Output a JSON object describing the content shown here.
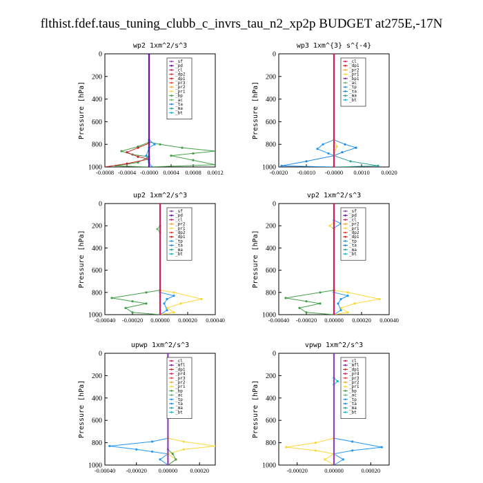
{
  "title": "flthist.fdef.taus_tuning_clubb_c_invrs_tau_n2_xp2p  BUDGET at275E,-17N",
  "colors": {
    "sf": "#8e44ad",
    "pd": "#6a0dad",
    "cl": "#d81b60",
    "dp2": "#e53935",
    "dp1": "#c62828",
    "pr3": "#f44336",
    "pr2": "#ffa726",
    "pr1": "#fdd835",
    "bp": "#43a047",
    "ac": "#66bb6a",
    "tp": "#2196f3",
    "ta": "#1e88e5",
    "ma": "#26a69a",
    "bt": "#00bcd4",
    "mfl": "#7b1fa2",
    "pr4": "#e91e63",
    "bp1": "#8e24aa"
  },
  "chart_data": [
    {
      "type": "line",
      "title": "wp2  1xm^2/s^3",
      "ylabel": "Pressure [hPa]",
      "ylim": [
        1000,
        0
      ],
      "yticks": [
        "0",
        "200",
        "400",
        "600",
        "800",
        "1000"
      ],
      "xlim": [
        -0.0008,
        0.0012
      ],
      "xticks": [
        "-0.0008",
        "-0.0004",
        "-0.0000",
        "0.0004",
        "0.0008",
        "0.0012"
      ],
      "legend": [
        "_sf",
        "_pd",
        "_cl",
        "_dp2",
        "_dp1",
        "_pr3",
        "_pr2",
        "_pr1",
        "_bp",
        "_ac",
        "_ta",
        "_ma",
        "_bt"
      ],
      "series": [
        {
          "name": "_pr1",
          "color_key": "bp",
          "points": [
            [
              0,
              780
            ],
            [
              0.0002,
              800
            ],
            [
              0.0006,
              830
            ],
            [
              0.0012,
              860
            ],
            [
              0.0008,
              880
            ],
            [
              0.0004,
              900
            ],
            [
              0.0008,
              940
            ],
            [
              0.0012,
              980
            ],
            [
              0,
              1000
            ]
          ]
        },
        {
          "name": "_bp",
          "color_key": "bp",
          "points": [
            [
              0,
              780
            ],
            [
              -0.0002,
              820
            ],
            [
              -0.0005,
              860
            ],
            [
              -0.0003,
              890
            ],
            [
              0,
              910
            ],
            [
              -0.0002,
              960
            ],
            [
              -0.0006,
              990
            ],
            [
              0,
              1000
            ]
          ]
        },
        {
          "name": "_dp1",
          "color_key": "dp1",
          "points": [
            [
              0,
              790
            ],
            [
              -0.0002,
              830
            ],
            [
              -0.0004,
              870
            ],
            [
              -0.0002,
              910
            ],
            [
              0,
              930
            ],
            [
              -0.0004,
              970
            ],
            [
              -0.0008,
              1000
            ]
          ]
        },
        {
          "name": "_ac",
          "color_key": "tp",
          "points": [
            [
              0,
              760
            ],
            [
              0.0001,
              800
            ],
            [
              0,
              830
            ],
            [
              -5e-05,
              900
            ],
            [
              0,
              960
            ],
            [
              5e-05,
              1000
            ]
          ]
        },
        {
          "name": "_sf",
          "color_key": "pd",
          "points": [
            [
              0,
              0
            ],
            [
              0,
              1000
            ]
          ]
        }
      ]
    },
    {
      "type": "line",
      "title": "wp3  1xm^{3} s^{-4}",
      "ylabel": "Pressure [hPa]",
      "ylim": [
        1000,
        0
      ],
      "yticks": [
        "0",
        "200",
        "400",
        "600",
        "800",
        "1000"
      ],
      "xlim": [
        -0.002,
        0.002
      ],
      "xticks": [
        "-0.0020",
        "-0.0010",
        "-0.0000",
        "0.0010",
        "0.0020"
      ],
      "legend": [
        "_cl",
        "_dp1",
        "_pr2",
        "_pr1",
        "_bp1",
        "_ac",
        "_tp",
        "_ta",
        "_ma",
        "_bt"
      ],
      "series": [
        {
          "name": "_ta",
          "color_key": "ta",
          "points": [
            [
              0,
              760
            ],
            [
              0.0004,
              800
            ],
            [
              0.0008,
              830
            ],
            [
              0.0003,
              870
            ],
            [
              0,
              900
            ],
            [
              -0.001,
              950
            ],
            [
              -0.0019,
              990
            ],
            [
              0,
              1000
            ]
          ]
        },
        {
          "name": "_tp",
          "color_key": "tp",
          "points": [
            [
              0,
              760
            ],
            [
              -0.0004,
              800
            ],
            [
              -0.0006,
              840
            ],
            [
              -0.0002,
              880
            ],
            [
              0,
              900
            ]
          ]
        },
        {
          "name": "_ma",
          "color_key": "ma",
          "points": [
            [
              0,
              900
            ],
            [
              0.0006,
              950
            ],
            [
              0.0016,
              990
            ],
            [
              0,
              1000
            ]
          ]
        },
        {
          "name": "_pr1",
          "color_key": "pr1",
          "points": [
            [
              0,
              760
            ],
            [
              0.0001,
              820
            ],
            [
              0,
              900
            ]
          ]
        },
        {
          "name": "_cl",
          "color_key": "cl",
          "points": [
            [
              0,
              0
            ],
            [
              0,
              1000
            ]
          ]
        }
      ]
    },
    {
      "type": "line",
      "title": "up2  1xm^2/s^3",
      "ylabel": "Pressure [hPa]",
      "ylim": [
        1000,
        0
      ],
      "yticks": [
        "0",
        "200",
        "400",
        "600",
        "800",
        "1000"
      ],
      "xlim": [
        -0.0004,
        0.0004
      ],
      "xticks": [
        "-0.00040",
        "-0.00020",
        "0.00000",
        "0.00020",
        "0.00040"
      ],
      "legend": [
        "_sf",
        "_pd",
        "_cl",
        "_pr2",
        "_pr1",
        "_dp2",
        "_dp1",
        "_tp",
        "_ta",
        "_ma",
        "_bt"
      ],
      "series": [
        {
          "name": "_pr1",
          "color_key": "pr1",
          "points": [
            [
              0,
              780
            ],
            [
              0.0001,
              800
            ],
            [
              0.0003,
              860
            ],
            [
              0.00015,
              900
            ],
            [
              5e-05,
              940
            ],
            [
              0.0001,
              980
            ],
            [
              0,
              1000
            ]
          ]
        },
        {
          "name": "_dp2",
          "color_key": "bp",
          "points": [
            [
              0,
              780
            ],
            [
              -0.0001,
              800
            ],
            [
              -0.00035,
              850
            ],
            [
              -0.0002,
              880
            ],
            [
              -0.0001,
              900
            ],
            [
              -0.00025,
              940
            ],
            [
              -0.0002,
              980
            ],
            [
              0,
              1000
            ]
          ]
        },
        {
          "name": "_tp",
          "color_key": "tp",
          "points": [
            [
              0,
              800
            ],
            [
              0.0001,
              830
            ],
            [
              5e-05,
              860
            ],
            [
              3e-05,
              900
            ],
            [
              5e-05,
              960
            ],
            [
              0,
              1000
            ]
          ]
        },
        {
          "name": "_dp1",
          "color_key": "ac",
          "points": [
            [
              0,
              200
            ],
            [
              -2e-05,
              230
            ],
            [
              0,
              260
            ]
          ]
        },
        {
          "name": "_sf",
          "color_key": "cl",
          "points": [
            [
              0,
              0
            ],
            [
              0,
              1000
            ]
          ]
        }
      ]
    },
    {
      "type": "line",
      "title": "vp2  1xm^2/s^3",
      "ylabel": "Pressure [hPa]",
      "ylim": [
        1000,
        0
      ],
      "yticks": [
        "0",
        "200",
        "400",
        "600",
        "800",
        "1000"
      ],
      "xlim": [
        -0.0004,
        0.0004
      ],
      "xticks": [
        "-0.00040",
        "-0.00020",
        "0.00000",
        "0.00020",
        "0.00040"
      ],
      "legend": [
        "_sf",
        "_pd",
        "_cl",
        "_pr2",
        "_pr1",
        "_dp2",
        "_dp1",
        "_tp",
        "_ta",
        "_ma",
        "_bt"
      ],
      "series": [
        {
          "name": "_pr1",
          "color_key": "pr1",
          "points": [
            [
              0,
              780
            ],
            [
              0.0001,
              800
            ],
            [
              0.00033,
              860
            ],
            [
              0.00015,
              900
            ],
            [
              5e-05,
              940
            ],
            [
              0.0001,
              980
            ],
            [
              0,
              1000
            ]
          ]
        },
        {
          "name": "_dp2",
          "color_key": "bp",
          "points": [
            [
              0,
              780
            ],
            [
              -0.0001,
              800
            ],
            [
              -0.00035,
              850
            ],
            [
              -0.0002,
              880
            ],
            [
              -0.0001,
              900
            ],
            [
              -0.00025,
              940
            ],
            [
              -0.0002,
              980
            ],
            [
              0,
              1000
            ]
          ]
        },
        {
          "name": "_tp",
          "color_key": "tp",
          "points": [
            [
              0,
              800
            ],
            [
              0.0001,
              830
            ],
            [
              5e-05,
              860
            ],
            [
              3e-05,
              900
            ],
            [
              5e-05,
              960
            ],
            [
              0,
              1000
            ]
          ]
        },
        {
          "name": "_pr2",
          "color_key": "pr1",
          "points": [
            [
              0,
              170
            ],
            [
              -3e-05,
              200
            ],
            [
              0,
              230
            ]
          ]
        },
        {
          "name": "_ta",
          "color_key": "tp",
          "points": [
            [
              0,
              150
            ],
            [
              5e-05,
              180
            ],
            [
              0,
              220
            ]
          ]
        },
        {
          "name": "_sf",
          "color_key": "cl",
          "points": [
            [
              0,
              0
            ],
            [
              0,
              1000
            ]
          ]
        }
      ]
    },
    {
      "type": "line",
      "title": "upwp  1xm^2/s^3",
      "ylabel": "Pressure [hPa]",
      "ylim": [
        1000,
        0
      ],
      "yticks": [
        "0",
        "200",
        "400",
        "600",
        "800",
        "1000"
      ],
      "xlim": [
        -0.0004,
        0.0003
      ],
      "xticks": [
        "-0.00040",
        "-0.00020",
        "0.00000",
        "0.00020"
      ],
      "legend": [
        "_cl",
        "_mfl",
        "_dp1",
        "_pr4",
        "_pr3",
        "_pr2",
        "_pr1",
        "_bp",
        "_ac",
        "_tp",
        "_ta",
        "_ma",
        "_bt"
      ],
      "series": [
        {
          "name": "_tp",
          "color_key": "tp",
          "points": [
            [
              0,
              760
            ],
            [
              -0.0001,
              790
            ],
            [
              -0.00037,
              830
            ],
            [
              -0.0002,
              860
            ],
            [
              -0.0001,
              880
            ],
            [
              0,
              900
            ],
            [
              -5e-05,
              950
            ],
            [
              0,
              1000
            ]
          ]
        },
        {
          "name": "_pr1",
          "color_key": "pr1",
          "points": [
            [
              0,
              760
            ],
            [
              0.0001,
              790
            ],
            [
              0.0003,
              830
            ],
            [
              0.0001,
              860
            ],
            [
              0,
              900
            ],
            [
              5e-05,
              950
            ],
            [
              0,
              1000
            ]
          ]
        },
        {
          "name": "_bp",
          "color_key": "bp",
          "points": [
            [
              0,
              860
            ],
            [
              3e-05,
              900
            ],
            [
              5e-05,
              950
            ],
            [
              0,
              1000
            ]
          ]
        },
        {
          "name": "_cl",
          "color_key": "sf",
          "points": [
            [
              0,
              0
            ],
            [
              0,
              1000
            ]
          ]
        }
      ]
    },
    {
      "type": "line",
      "title": "vpwp  1xm^2/s^3",
      "ylabel": "Pressure [hPa]",
      "ylim": [
        1000,
        0
      ],
      "yticks": [
        "0",
        "200",
        "400",
        "600",
        "800",
        "1000"
      ],
      "xlim": [
        -0.0003,
        0.0003
      ],
      "xticks": [
        "-0.00020",
        "0.00000",
        "0.00020"
      ],
      "legend": [
        "_cl",
        "_mfl",
        "_dp1",
        "_pr4",
        "_pr3",
        "_pr2",
        "_pr1",
        "_bp",
        "_ac",
        "_tp",
        "_ta",
        "_ma",
        "_bt"
      ],
      "series": [
        {
          "name": "_tp",
          "color_key": "tp",
          "points": [
            [
              0,
              760
            ],
            [
              0.0001,
              790
            ],
            [
              0.00026,
              840
            ],
            [
              0.0001,
              870
            ],
            [
              0,
              900
            ],
            [
              5e-05,
              950
            ],
            [
              0,
              1000
            ]
          ]
        },
        {
          "name": "_pr1",
          "color_key": "pr1",
          "points": [
            [
              0,
              760
            ],
            [
              -0.0001,
              800
            ],
            [
              -0.00026,
              840
            ],
            [
              -0.0001,
              870
            ],
            [
              0,
              900
            ],
            [
              -5e-05,
              950
            ],
            [
              0,
              1000
            ]
          ]
        },
        {
          "name": "_ta",
          "color_key": "bt",
          "points": [
            [
              0,
              220
            ],
            [
              2e-05,
              250
            ],
            [
              0,
              280
            ]
          ]
        },
        {
          "name": "_cl",
          "color_key": "sf",
          "points": [
            [
              0,
              0
            ],
            [
              0,
              1000
            ]
          ]
        }
      ]
    }
  ]
}
